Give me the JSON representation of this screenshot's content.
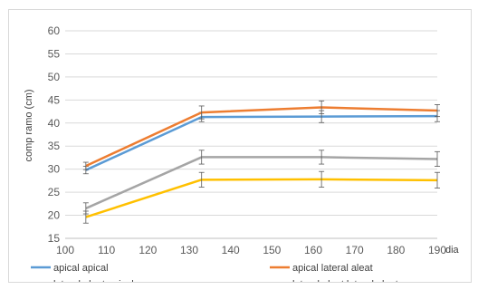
{
  "chart_data": {
    "type": "line",
    "title": "",
    "xlabel": "dia",
    "ylabel": "comp ramo (cm)",
    "xlim": [
      100,
      190
    ],
    "ylim": [
      15,
      60
    ],
    "x_ticks": [
      100,
      110,
      120,
      130,
      140,
      150,
      160,
      170,
      180,
      190
    ],
    "y_ticks": [
      15,
      20,
      25,
      30,
      35,
      40,
      45,
      50,
      55,
      60
    ],
    "grid": "horizontal",
    "legend_position": "bottom",
    "series": [
      {
        "name": "apical apical",
        "color": "#5b9bd5",
        "x": [
          105,
          133,
          162,
          190
        ],
        "y": [
          29.8,
          41.3,
          41.4,
          41.5
        ],
        "err": [
          0.8,
          1.0,
          1.3,
          1.2
        ]
      },
      {
        "name": "apical lateral aleat",
        "color": "#ed7d31",
        "x": [
          105,
          133,
          162,
          190
        ],
        "y": [
          30.7,
          42.3,
          43.4,
          42.7
        ],
        "err": [
          0.8,
          1.4,
          1.4,
          1.3
        ]
      },
      {
        "name": "lateral aleat apical",
        "color": "#a5a5a5",
        "x": [
          105,
          133,
          162,
          190
        ],
        "y": [
          21.5,
          32.6,
          32.6,
          32.2
        ],
        "err": [
          1.2,
          1.5,
          1.5,
          1.6
        ]
      },
      {
        "name": "lateral aleat lateral aleat",
        "color": "#ffc000",
        "x": [
          105,
          133,
          162,
          190
        ],
        "y": [
          19.6,
          27.7,
          27.8,
          27.6
        ],
        "err": [
          1.3,
          1.6,
          1.7,
          1.7
        ]
      }
    ]
  }
}
